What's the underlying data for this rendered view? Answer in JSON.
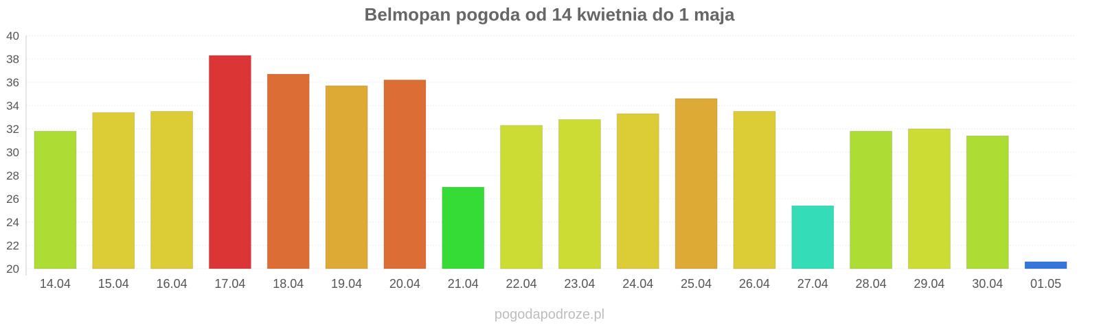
{
  "chart_data": {
    "type": "bar",
    "title": "Belmopan pogoda od 14 kwietnia do 1 maja",
    "xlabel": "",
    "ylabel": "",
    "ylim": [
      20,
      40
    ],
    "yticks": [
      20,
      22,
      24,
      26,
      28,
      30,
      32,
      34,
      36,
      38,
      40
    ],
    "categories": [
      "14.04",
      "15.04",
      "16.04",
      "17.04",
      "18.04",
      "19.04",
      "20.04",
      "21.04",
      "22.04",
      "23.04",
      "24.04",
      "25.04",
      "26.04",
      "27.04",
      "28.04",
      "29.04",
      "30.04",
      "01.05"
    ],
    "values": [
      31.8,
      33.4,
      33.5,
      38.3,
      36.7,
      35.7,
      36.2,
      27.0,
      32.3,
      32.8,
      33.3,
      34.6,
      33.5,
      25.4,
      31.8,
      32.0,
      31.4,
      20.6
    ],
    "colors": [
      "#addc35",
      "#dccc35",
      "#dccc35",
      "#dc3535",
      "#dc6e35",
      "#dcaa35",
      "#dc6e35",
      "#35dc35",
      "#ccdc35",
      "#ccdc35",
      "#dccc35",
      "#dcaa35",
      "#dccc35",
      "#35dcb8",
      "#addc35",
      "#ccdc35",
      "#addc35",
      "#3575dc"
    ],
    "grid": true,
    "legend": "none"
  },
  "footer": {
    "watermark": "pogodapodroze.pl"
  }
}
